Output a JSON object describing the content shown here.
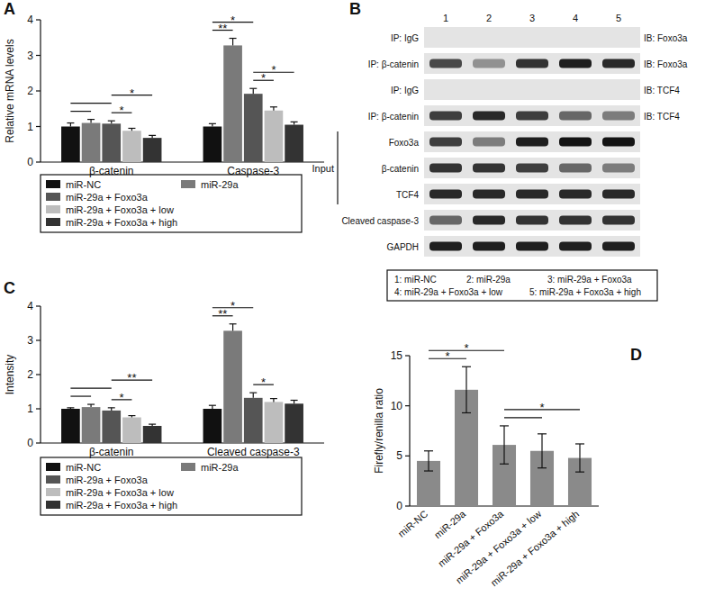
{
  "chart_data": [
    {
      "type": "bar",
      "title": "A",
      "y_label": "Relative mRNA levels",
      "categories": [
        "β-catenin",
        "Caspase-3"
      ],
      "series": [
        {
          "name": "miR-NC",
          "color": "#111111",
          "values": [
            1.0,
            1.0
          ],
          "errors": [
            0.1,
            0.08
          ]
        },
        {
          "name": "miR-29a",
          "color": "#7a7a7a",
          "values": [
            1.1,
            3.28
          ],
          "errors": [
            0.1,
            0.2
          ]
        },
        {
          "name": "miR-29a + Foxo3a",
          "color": "#555555",
          "values": [
            1.08,
            1.92
          ],
          "errors": [
            0.08,
            0.15
          ]
        },
        {
          "name": "miR-29a + Foxo3a + low",
          "color": "#bdbdbd",
          "values": [
            0.88,
            1.45
          ],
          "errors": [
            0.07,
            0.1
          ]
        },
        {
          "name": "miR-29a + Foxo3a + high",
          "color": "#333333",
          "values": [
            0.68,
            1.05
          ],
          "errors": [
            0.07,
            0.08
          ]
        }
      ],
      "ylim": [
        0,
        4
      ],
      "yticks": [
        0,
        1,
        2,
        3,
        4
      ],
      "annotations": [
        {
          "category": 0,
          "from": 0,
          "to": 1
        },
        {
          "category": 0,
          "from": 0,
          "to": 2
        },
        {
          "category": 0,
          "from": 2,
          "to": 3,
          "label": "*"
        },
        {
          "category": 0,
          "from": 2,
          "to": 4,
          "label": "*"
        },
        {
          "category": 1,
          "from": 0,
          "to": 1,
          "label": "**"
        },
        {
          "category": 1,
          "from": 0,
          "to": 2,
          "label": "*"
        },
        {
          "category": 1,
          "from": 2,
          "to": 3,
          "label": "*"
        },
        {
          "category": 1,
          "from": 2,
          "to": 4,
          "label": "*"
        }
      ]
    },
    {
      "type": "blot",
      "title": "B",
      "lanes": [
        "1",
        "2",
        "3",
        "4",
        "5"
      ],
      "rows": [
        {
          "ip": "IP: IgG",
          "ib": "IB: Foxo3a",
          "values": [
            0,
            0,
            0,
            0,
            0
          ]
        },
        {
          "ip": "IP: β-catenin",
          "ib": "IB: Foxo3a",
          "values": [
            0.75,
            0.4,
            0.85,
            0.95,
            0.9
          ]
        },
        {
          "ip": "IP: IgG",
          "ib": "IB: TCF4",
          "values": [
            0,
            0,
            0,
            0,
            0
          ]
        },
        {
          "ip": "IP: β-catenin",
          "ib": "IB: TCF4",
          "values": [
            0.8,
            0.9,
            0.8,
            0.6,
            0.5
          ]
        },
        {
          "label": "Foxo3a",
          "values": [
            0.8,
            0.5,
            0.95,
            1,
            1
          ]
        },
        {
          "label": "β-catenin",
          "values": [
            0.85,
            0.85,
            0.8,
            0.6,
            0.5
          ]
        },
        {
          "label": "TCF4",
          "values": [
            0.9,
            0.9,
            0.9,
            0.9,
            0.9
          ]
        },
        {
          "label": "Cleaved caspase-3",
          "values": [
            0.6,
            0.9,
            0.85,
            0.85,
            0.85
          ]
        },
        {
          "label": "GAPDH",
          "values": [
            0.95,
            0.95,
            0.95,
            0.95,
            0.95
          ]
        }
      ],
      "groups": [
        {
          "label": "Input",
          "from": 4,
          "to": 6
        }
      ],
      "lane_names": [
        "1: miR-NC",
        "2: miR-29a",
        "3: miR-29a + Foxo3a",
        "4: miR-29a + Foxo3a + low",
        "5: miR-29a + Foxo3a + high"
      ]
    },
    {
      "type": "bar",
      "title": "C",
      "y_label": "Intensity",
      "categories": [
        "β-catenin",
        "Cleaved caspase-3"
      ],
      "series": [
        {
          "name": "miR-NC",
          "color": "#111111",
          "values": [
            1.0,
            1.0
          ],
          "errors": [
            0.03,
            0.1
          ]
        },
        {
          "name": "miR-29a",
          "color": "#7a7a7a",
          "values": [
            1.05,
            3.28
          ],
          "errors": [
            0.08,
            0.2
          ]
        },
        {
          "name": "miR-29a + Foxo3a",
          "color": "#555555",
          "values": [
            0.95,
            1.32
          ],
          "errors": [
            0.08,
            0.15
          ]
        },
        {
          "name": "miR-29a + Foxo3a + low",
          "color": "#bdbdbd",
          "values": [
            0.75,
            1.2
          ],
          "errors": [
            0.05,
            0.1
          ]
        },
        {
          "name": "miR-29a + Foxo3a + high",
          "color": "#333333",
          "values": [
            0.5,
            1.15
          ],
          "errors": [
            0.05,
            0.1
          ]
        }
      ],
      "ylim": [
        0,
        4
      ],
      "yticks": [
        0,
        1,
        2,
        3,
        4
      ],
      "annotations": [
        {
          "category": 0,
          "from": 0,
          "to": 1
        },
        {
          "category": 0,
          "from": 0,
          "to": 2
        },
        {
          "category": 0,
          "from": 2,
          "to": 3,
          "label": "*"
        },
        {
          "category": 0,
          "from": 2,
          "to": 4,
          "label": "**"
        },
        {
          "category": 1,
          "from": 0,
          "to": 1,
          "label": "**"
        },
        {
          "category": 1,
          "from": 0,
          "to": 2,
          "label": "*"
        },
        {
          "category": 1,
          "from": 2,
          "to": 3,
          "label": "*"
        }
      ]
    },
    {
      "type": "bar",
      "title": "D",
      "y_label": "Firefly/renilla ratio",
      "categories": [
        "miR-NC",
        "miR-29a",
        "miR-29a + Foxo3a",
        "miR-29a + Foxo3a + low",
        "miR-29a + Foxo3a + high"
      ],
      "values": [
        4.5,
        11.6,
        6.1,
        5.5,
        4.8
      ],
      "errors": [
        1.0,
        2.3,
        1.9,
        1.7,
        1.4
      ],
      "color": "#8a8a8a",
      "ylim": [
        0,
        15
      ],
      "yticks": [
        0,
        5,
        10,
        15
      ],
      "annotations": [
        {
          "from": 0,
          "to": 1,
          "label": "*"
        },
        {
          "from": 0,
          "to": 2,
          "label": "*"
        },
        {
          "from": 2,
          "to": 3
        },
        {
          "from": 2,
          "to": 4,
          "label": "*"
        }
      ]
    }
  ]
}
